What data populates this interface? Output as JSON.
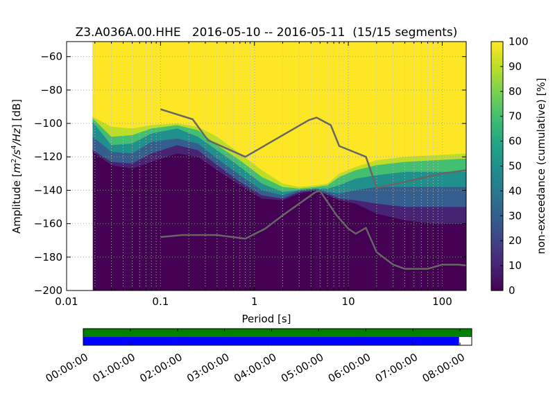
{
  "chart_data": [
    {
      "type": "heatmap",
      "title": "Z3.A036A.00.HHE   2016-05-10 -- 2016-05-11  (15/15 segments)",
      "xlabel": "Period [s]",
      "ylabel": "Amplitude [m²/s⁴/Hz] [dB]",
      "xscale": "log",
      "xlim": [
        0.01,
        180
      ],
      "ylim": [
        -200,
        -51
      ],
      "x_ticks": [
        {
          "value": 0.01,
          "label": "0.01"
        },
        {
          "value": 0.1,
          "label": "0.1"
        },
        {
          "value": 1,
          "label": "1"
        },
        {
          "value": 10,
          "label": "10"
        },
        {
          "value": 100,
          "label": "100"
        }
      ],
      "y_ticks": [
        {
          "value": -60,
          "label": "−60"
        },
        {
          "value": -80,
          "label": "−80"
        },
        {
          "value": -100,
          "label": "−100"
        },
        {
          "value": -120,
          "label": "−120"
        },
        {
          "value": -140,
          "label": "−140"
        },
        {
          "value": -160,
          "label": "−160"
        },
        {
          "value": -180,
          "label": "−180"
        },
        {
          "value": -200,
          "label": "−200"
        }
      ],
      "grid": true,
      "colormap": "viridis",
      "data_period_start": 0.019,
      "colorbar": {
        "label": "non-exceedance (cumulative) [%]",
        "range": [
          0,
          100
        ],
        "ticks": [
          {
            "value": 0,
            "label": "0"
          },
          {
            "value": 10,
            "label": "10"
          },
          {
            "value": 20,
            "label": "20"
          },
          {
            "value": 30,
            "label": "30"
          },
          {
            "value": 40,
            "label": "40"
          },
          {
            "value": 50,
            "label": "50"
          },
          {
            "value": 60,
            "label": "60"
          },
          {
            "value": 70,
            "label": "70"
          },
          {
            "value": 80,
            "label": "80"
          },
          {
            "value": 90,
            "label": "90"
          },
          {
            "value": 100,
            "label": "100"
          }
        ]
      },
      "percentile_contours": [
        {
          "level": 0,
          "points": [
            [
              0.019,
              -118
            ],
            [
              0.03,
              -130
            ],
            [
              0.05,
              -132
            ],
            [
              0.08,
              -130
            ],
            [
              0.15,
              -127
            ],
            [
              0.25,
              -128
            ],
            [
              0.4,
              -134
            ],
            [
              0.7,
              -143
            ],
            [
              1.2,
              -150
            ],
            [
              2,
              -150
            ],
            [
              3,
              -144
            ],
            [
              4.5,
              -140
            ],
            [
              6,
              -146
            ],
            [
              8,
              -152
            ],
            [
              12,
              -158
            ],
            [
              18,
              -163
            ],
            [
              25,
              -165
            ],
            [
              180,
              -165
            ]
          ]
        },
        {
          "level": 10,
          "points": [
            [
              0.019,
              -117
            ],
            [
              0.03,
              -125
            ],
            [
              0.05,
              -127
            ],
            [
              0.08,
              -123
            ],
            [
              0.15,
              -118
            ],
            [
              0.25,
              -120
            ],
            [
              0.4,
              -128
            ],
            [
              0.7,
              -137
            ],
            [
              1.2,
              -145
            ],
            [
              2,
              -146
            ],
            [
              3,
              -142
            ],
            [
              4.5,
              -140
            ],
            [
              6,
              -143
            ],
            [
              8,
              -146
            ],
            [
              12,
              -148
            ],
            [
              20,
              -154
            ],
            [
              40,
              -158
            ],
            [
              80,
              -160
            ],
            [
              180,
              -160
            ]
          ]
        },
        {
          "level": 30,
          "points": [
            [
              0.019,
              -116
            ],
            [
              0.03,
              -123
            ],
            [
              0.05,
              -124
            ],
            [
              0.08,
              -118
            ],
            [
              0.15,
              -113
            ],
            [
              0.25,
              -116
            ],
            [
              0.4,
              -125
            ],
            [
              0.7,
              -135
            ],
            [
              1.2,
              -143
            ],
            [
              2,
              -145
            ],
            [
              3,
              -141
            ],
            [
              4.5,
              -140
            ],
            [
              6,
              -142
            ],
            [
              8,
              -145
            ],
            [
              12,
              -146
            ],
            [
              20,
              -148
            ],
            [
              40,
              -150
            ],
            [
              180,
              -150
            ]
          ]
        },
        {
          "level": 50,
          "points": [
            [
              0.019,
              -108
            ],
            [
              0.03,
              -117
            ],
            [
              0.05,
              -118
            ],
            [
              0.08,
              -111
            ],
            [
              0.15,
              -109
            ],
            [
              0.25,
              -112
            ],
            [
              0.4,
              -121
            ],
            [
              0.7,
              -131
            ],
            [
              1.2,
              -140
            ],
            [
              2,
              -143
            ],
            [
              3,
              -140
            ],
            [
              4.5,
              -139
            ],
            [
              6,
              -141
            ],
            [
              8,
              -142
            ],
            [
              12,
              -140
            ],
            [
              20,
              -138
            ],
            [
              40,
              -138
            ],
            [
              180,
              -138
            ]
          ]
        },
        {
          "level": 70,
          "points": [
            [
              0.019,
              -99
            ],
            [
              0.03,
              -113
            ],
            [
              0.05,
              -112
            ],
            [
              0.08,
              -106
            ],
            [
              0.15,
              -103
            ],
            [
              0.25,
              -108
            ],
            [
              0.4,
              -116
            ],
            [
              0.7,
              -126
            ],
            [
              1.2,
              -136
            ],
            [
              2,
              -141
            ],
            [
              3,
              -140
            ],
            [
              4.5,
              -139
            ],
            [
              6,
              -139
            ],
            [
              8,
              -137
            ],
            [
              12,
              -133
            ],
            [
              20,
              -131
            ],
            [
              40,
              -129
            ],
            [
              180,
              -129
            ]
          ]
        },
        {
          "level": 90,
          "points": [
            [
              0.019,
              -97
            ],
            [
              0.03,
              -108
            ],
            [
              0.05,
              -107
            ],
            [
              0.08,
              -103
            ],
            [
              0.15,
              -101
            ],
            [
              0.25,
              -104
            ],
            [
              0.4,
              -113
            ],
            [
              0.7,
              -122
            ],
            [
              1.2,
              -132
            ],
            [
              2,
              -138
            ],
            [
              3,
              -139
            ],
            [
              4.5,
              -138
            ],
            [
              6,
              -137
            ],
            [
              8,
              -132
            ],
            [
              12,
              -128
            ],
            [
              20,
              -125
            ],
            [
              40,
              -123
            ],
            [
              180,
              -121
            ]
          ]
        },
        {
          "level": 100,
          "points": [
            [
              0.019,
              -96
            ],
            [
              0.03,
              -102
            ],
            [
              0.05,
              -103
            ],
            [
              0.08,
              -101
            ],
            [
              0.15,
              -100
            ],
            [
              0.25,
              -102
            ],
            [
              0.4,
              -108
            ],
            [
              0.7,
              -118
            ],
            [
              1.2,
              -128
            ],
            [
              2,
              -136
            ],
            [
              3,
              -138
            ],
            [
              4.5,
              -137
            ],
            [
              6,
              -136
            ],
            [
              8,
              -130
            ],
            [
              12,
              -126
            ],
            [
              20,
              -122
            ],
            [
              40,
              -120
            ],
            [
              180,
              -118
            ]
          ]
        }
      ],
      "series": [
        {
          "values": [
            [
              0.1,
              -91.5
            ],
            [
              0.22,
              -97.5
            ],
            [
              0.32,
              -110
            ],
            [
              0.8,
              -120
            ],
            [
              3.8,
              -98
            ],
            [
              4.6,
              -96.5
            ],
            [
              6.5,
              -101
            ],
            [
              8,
              -113.5
            ],
            [
              15.4,
              -120
            ],
            [
              20,
              -138.5
            ],
            [
              40,
              -135
            ],
            [
              100,
              -130
            ],
            [
              180,
              -128
            ]
          ]
        },
        {
          "values": [
            [
              0.1,
              -168
            ],
            [
              0.17,
              -166.8
            ],
            [
              0.4,
              -166.8
            ],
            [
              0.8,
              -169
            ],
            [
              1.3,
              -163
            ],
            [
              2,
              -155
            ],
            [
              3,
              -148
            ],
            [
              4.5,
              -141
            ],
            [
              5,
              -140.5
            ],
            [
              6,
              -147
            ],
            [
              7.5,
              -155
            ],
            [
              10,
              -163
            ],
            [
              12,
              -166
            ],
            [
              15.4,
              -162.5
            ],
            [
              20,
              -177
            ],
            [
              30,
              -184.5
            ],
            [
              40,
              -187
            ],
            [
              70,
              -187
            ],
            [
              100,
              -184.5
            ],
            [
              150,
              -184.5
            ],
            [
              180,
              -185
            ]
          ]
        }
      ]
    },
    {
      "type": "bar",
      "tick_labels": [
        "00:00:00",
        "01:00:00",
        "02:00:00",
        "03:00:00",
        "04:00:00",
        "05:00:00",
        "06:00:00",
        "07:00:00",
        "08:00:00"
      ],
      "coverage": [
        {
          "color": "#008000",
          "start_hours": 0,
          "end_hours": 8.25
        },
        {
          "color": "#0000ff",
          "start_hours": 0,
          "end_hours": 7.98
        }
      ],
      "x_range_hours": [
        0,
        8.25
      ]
    }
  ]
}
